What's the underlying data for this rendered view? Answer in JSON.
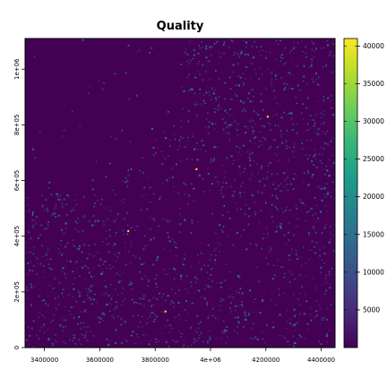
{
  "map": {
    "title": "Quality",
    "x_axis": {
      "ticks": [
        {
          "value": 3400000,
          "label": "3400000"
        },
        {
          "value": 3600000,
          "label": "3600000"
        },
        {
          "value": 3800000,
          "label": "3800000"
        },
        {
          "value": 4000000,
          "label": "4e+06"
        },
        {
          "value": 4200000,
          "label": "4200000"
        },
        {
          "value": 4400000,
          "label": "4400000"
        }
      ],
      "range": [
        3330000,
        4450000
      ]
    },
    "y_axis": {
      "ticks": [
        {
          "value": 0,
          "label": "0"
        },
        {
          "value": 200000,
          "label": "2e+05"
        },
        {
          "value": 400000,
          "label": "4e+05"
        },
        {
          "value": 600000,
          "label": "6e+05"
        },
        {
          "value": 800000,
          "label": "8e+05"
        },
        {
          "value": 1000000,
          "label": "1e+06"
        }
      ],
      "range": [
        0,
        1110000
      ]
    },
    "legend": {
      "placement": "right",
      "range": [
        0,
        41000
      ],
      "ticks": [
        {
          "value": 5000,
          "label": "5000"
        },
        {
          "value": 10000,
          "label": "10000"
        },
        {
          "value": 15000,
          "label": "15000"
        },
        {
          "value": 20000,
          "label": "20000"
        },
        {
          "value": 25000,
          "label": "25000"
        },
        {
          "value": 30000,
          "label": "30000"
        },
        {
          "value": 35000,
          "label": "35000"
        },
        {
          "value": 40000,
          "label": "40000"
        }
      ],
      "colors": [
        "#440154",
        "#482878",
        "#3e4a89",
        "#31688e",
        "#26828e",
        "#1f9e89",
        "#35b779",
        "#6ece58",
        "#b5de2b",
        "#fde725"
      ]
    },
    "raster": {
      "background_color": "#440154",
      "speckle_colors": [
        "#482878",
        "#3e4a89",
        "#31688e",
        "#26828e"
      ]
    }
  }
}
